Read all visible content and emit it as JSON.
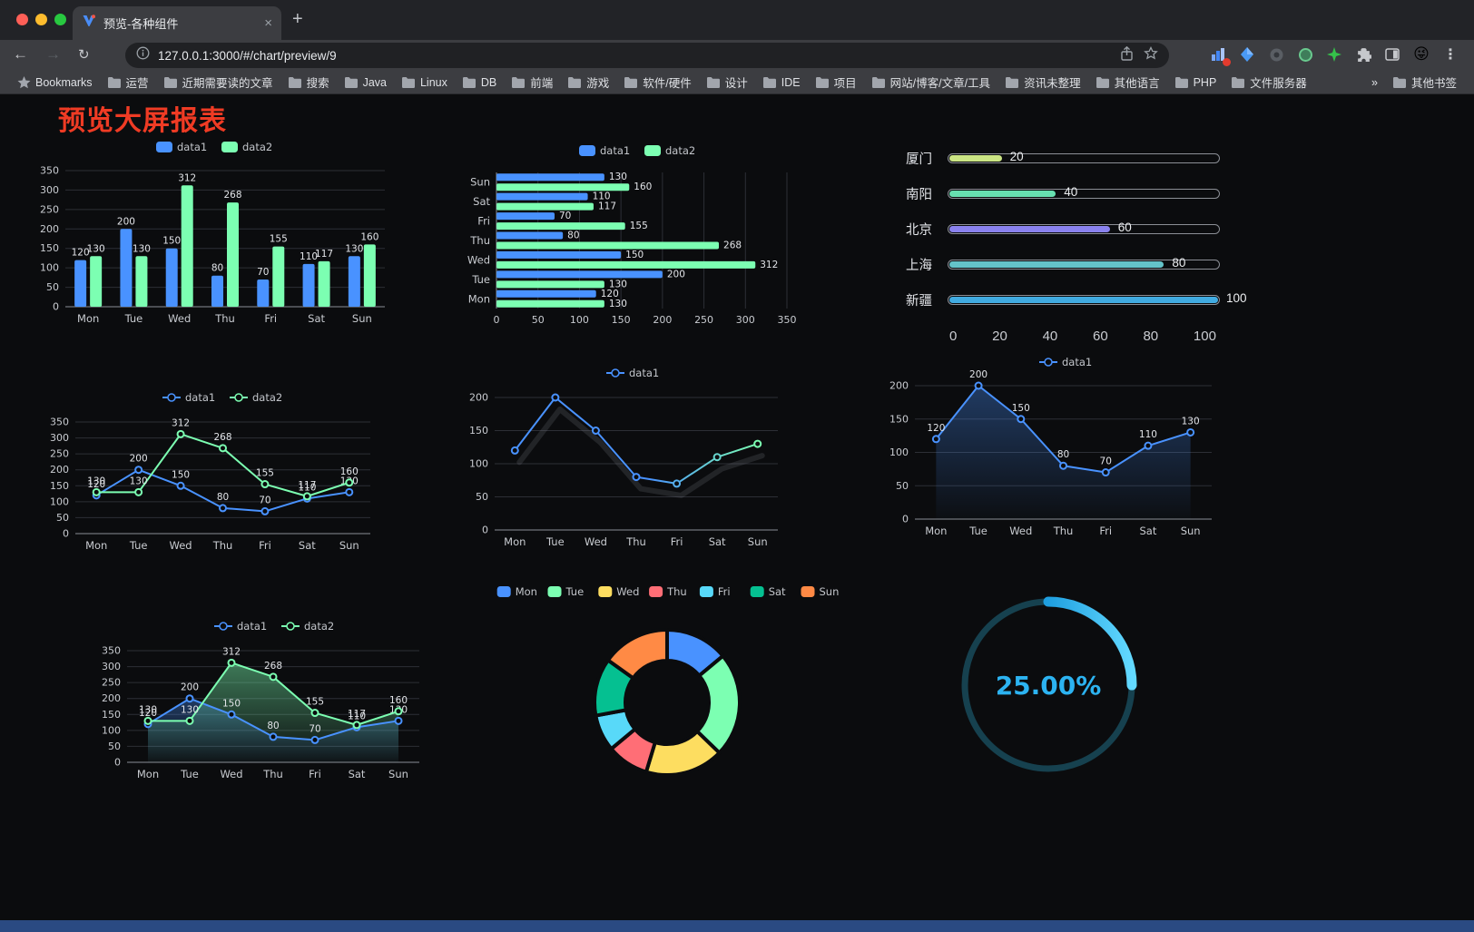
{
  "window": {
    "tab_title": "预览-各种组件",
    "tab_close_label": "×",
    "new_tab_label": "+",
    "url": "127.0.0.1:3000/#/chart/preview/9"
  },
  "bookmarks": {
    "first_label": "Bookmarks",
    "folders": [
      "运营",
      "近期需要读的文章",
      "搜索",
      "Java",
      "Linux",
      "DB",
      "前端",
      "游戏",
      "软件/硬件",
      "设计",
      "IDE",
      "项目",
      "网站/博客/文章/工具",
      "资讯未整理",
      "其他语言",
      "PHP",
      "文件服务器"
    ],
    "overflow_label": "»",
    "other_label": "其他书签"
  },
  "page": {
    "title": "预览大屏报表",
    "title_color": "#ef3b24",
    "background": "#0b0c0e",
    "footer_color": "#2a4a82"
  },
  "palette": {
    "blue": "#4992ff",
    "green": "#7cffb2",
    "yellow": "#fddd60",
    "red": "#ff6e76",
    "lightblue": "#58d9f9",
    "teal": "#05c091",
    "orange": "#ff8a45"
  },
  "chart_data": [
    {
      "id": "c1",
      "type": "bar",
      "orientation": "vertical",
      "legend": [
        "data1",
        "data2"
      ],
      "categories": [
        "Mon",
        "Tue",
        "Wed",
        "Thu",
        "Fri",
        "Sat",
        "Sun"
      ],
      "series": [
        {
          "name": "data1",
          "color": "#4992ff",
          "values": [
            120,
            200,
            150,
            80,
            70,
            110,
            130
          ]
        },
        {
          "name": "data2",
          "color": "#7cffb2",
          "values": [
            130,
            130,
            312,
            268,
            155,
            117,
            160
          ]
        }
      ],
      "ylim": [
        0,
        350
      ],
      "ytick": 50,
      "value_labels": true
    },
    {
      "id": "c2",
      "type": "bar",
      "orientation": "horizontal",
      "legend": [
        "data1",
        "data2"
      ],
      "categories": [
        "Mon",
        "Tue",
        "Wed",
        "Thu",
        "Fri",
        "Sat",
        "Sun"
      ],
      "series": [
        {
          "name": "data1",
          "color": "#4992ff",
          "values": [
            120,
            200,
            150,
            80,
            70,
            110,
            130
          ]
        },
        {
          "name": "data2",
          "color": "#7cffb2",
          "values": [
            130,
            130,
            312,
            268,
            155,
            117,
            160
          ]
        }
      ],
      "xlim": [
        0,
        350
      ],
      "xtick": 50,
      "value_labels": true
    },
    {
      "id": "c3",
      "type": "bar",
      "orientation": "horizontal-progress",
      "items": [
        {
          "label": "厦门",
          "value": 20,
          "color": "#cbe584"
        },
        {
          "label": "南阳",
          "value": 40,
          "color": "#67e0b0"
        },
        {
          "label": "北京",
          "value": 60,
          "color": "#8a82ee"
        },
        {
          "label": "上海",
          "value": 80,
          "color": "#64c3c9"
        },
        {
          "label": "新疆",
          "value": 100,
          "color": "#41abe1"
        }
      ],
      "xlim": [
        0,
        100
      ],
      "xticks": [
        0,
        20,
        40,
        60,
        80,
        100
      ]
    },
    {
      "id": "c4",
      "type": "line",
      "legend": [
        "data1",
        "data2"
      ],
      "categories": [
        "Mon",
        "Tue",
        "Wed",
        "Thu",
        "Fri",
        "Sat",
        "Sun"
      ],
      "series": [
        {
          "name": "data1",
          "color": "#4992ff",
          "values": [
            120,
            200,
            150,
            80,
            70,
            110,
            130
          ]
        },
        {
          "name": "data2",
          "color": "#7cffb2",
          "values": [
            130,
            130,
            312,
            268,
            155,
            117,
            160
          ]
        }
      ],
      "ylim": [
        0,
        350
      ],
      "ytick": 50,
      "value_labels": true
    },
    {
      "id": "c5",
      "type": "line",
      "legend": [
        "data1"
      ],
      "categories": [
        "Mon",
        "Tue",
        "Wed",
        "Thu",
        "Fri",
        "Sat",
        "Sun"
      ],
      "series": [
        {
          "name": "data1",
          "color": "#4992ff",
          "color_end": "#7cffb2",
          "values": [
            120,
            200,
            150,
            80,
            70,
            110,
            130
          ]
        }
      ],
      "ylim": [
        0,
        200
      ],
      "ytick": 50,
      "value_labels": false,
      "shadow": true
    },
    {
      "id": "c6",
      "type": "area",
      "legend": [
        "data1"
      ],
      "categories": [
        "Mon",
        "Tue",
        "Wed",
        "Thu",
        "Fri",
        "Sat",
        "Sun"
      ],
      "series": [
        {
          "name": "data1",
          "color": "#4992ff",
          "fill": true,
          "values": [
            120,
            200,
            150,
            80,
            70,
            110,
            130
          ]
        }
      ],
      "ylim": [
        0,
        200
      ],
      "ytick": 50,
      "value_labels": true
    },
    {
      "id": "c7",
      "type": "area",
      "legend": [
        "data1",
        "data2"
      ],
      "categories": [
        "Mon",
        "Tue",
        "Wed",
        "Thu",
        "Fri",
        "Sat",
        "Sun"
      ],
      "series": [
        {
          "name": "data1",
          "color": "#4992ff",
          "fill": true,
          "values": [
            120,
            200,
            150,
            80,
            70,
            110,
            130
          ]
        },
        {
          "name": "data2",
          "color": "#7cffb2",
          "fill": true,
          "values": [
            130,
            130,
            312,
            268,
            155,
            117,
            160
          ]
        }
      ],
      "ylim": [
        0,
        350
      ],
      "ytick": 50,
      "value_labels": true
    },
    {
      "id": "c8",
      "type": "pie",
      "shape": "donut",
      "categories": [
        "Mon",
        "Tue",
        "Wed",
        "Thu",
        "Fri",
        "Sat",
        "Sun"
      ],
      "values": [
        120,
        200,
        150,
        80,
        70,
        110,
        130
      ],
      "colors": [
        "#4992ff",
        "#7cffb2",
        "#fddd60",
        "#ff6e76",
        "#58d9f9",
        "#05c091",
        "#ff8a45"
      ]
    },
    {
      "id": "c9",
      "type": "gauge",
      "value": 25,
      "label": "25.00%",
      "color": "#2cb3f1"
    }
  ]
}
